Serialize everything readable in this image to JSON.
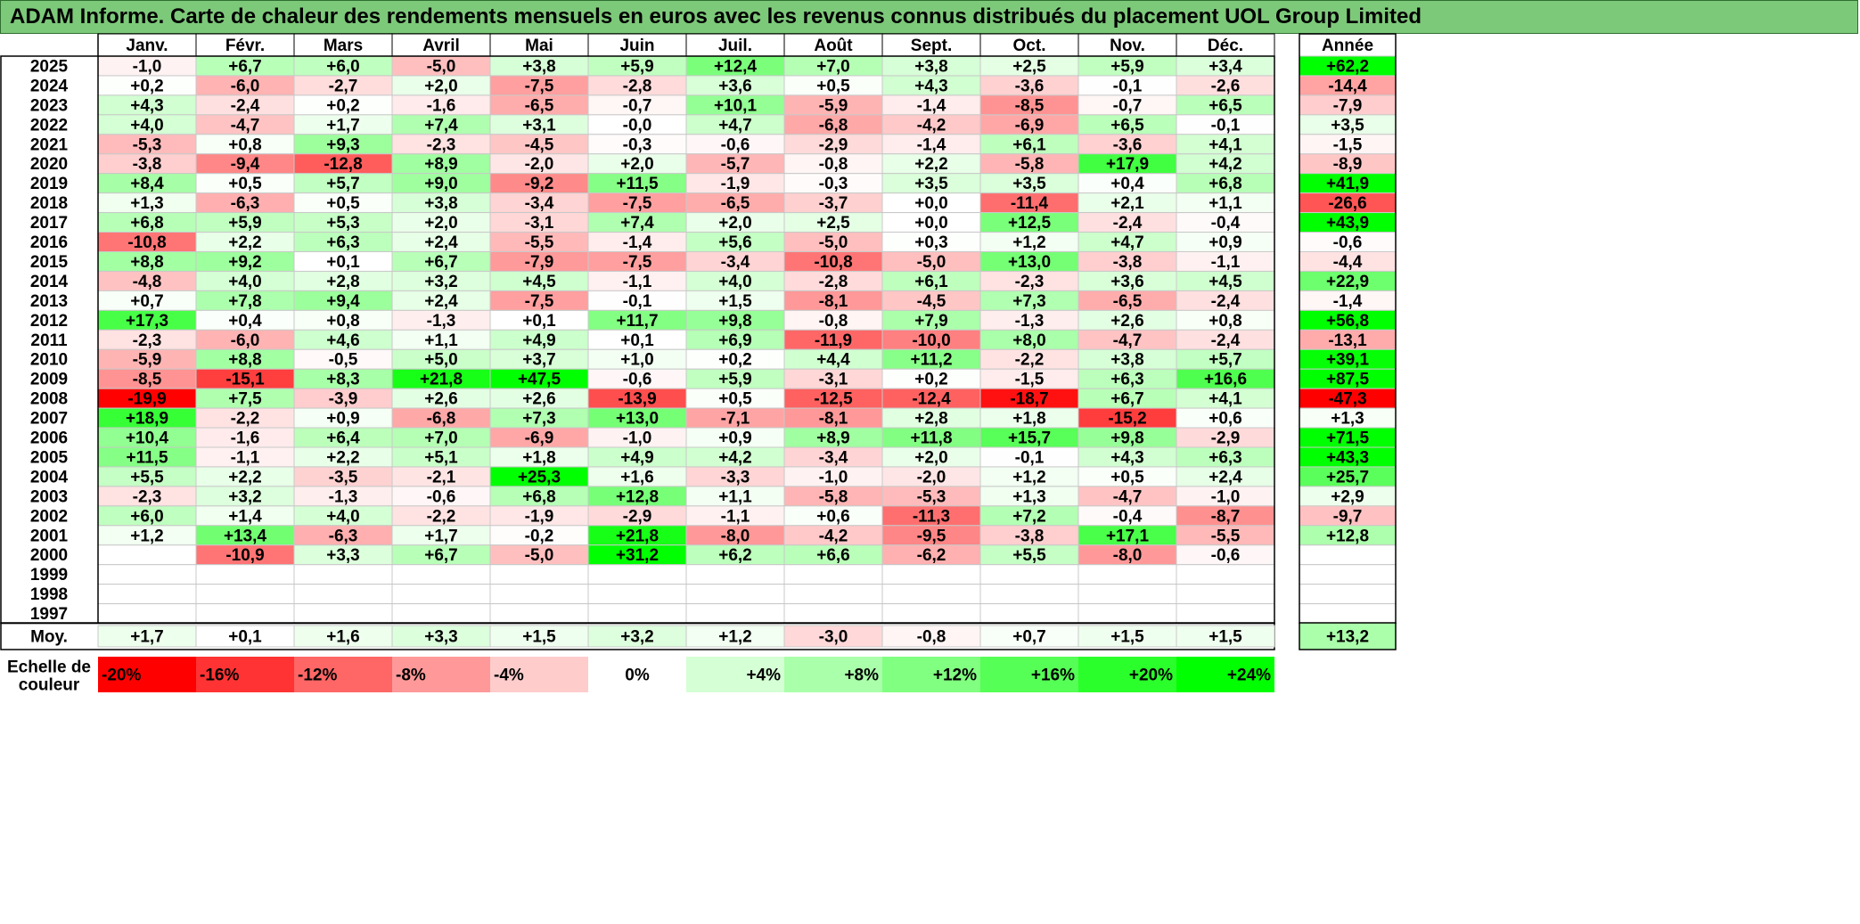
{
  "title": "ADAM Informe. Carte de chaleur des rendements mensuels en euros avec les revenus connus distribués du placement UOL Group Limited",
  "chart_data": {
    "type": "heatmap",
    "months": [
      "Janv.",
      "Févr.",
      "Mars",
      "Avril",
      "Mai",
      "Juin",
      "Juil.",
      "Août",
      "Sept.",
      "Oct.",
      "Nov.",
      "Déc."
    ],
    "year_header": "Année",
    "rows": [
      {
        "year": "2025",
        "values": [
          -1.0,
          6.7,
          6.0,
          -5.0,
          3.8,
          5.9,
          12.4,
          7.0,
          3.8,
          2.5,
          5.9,
          3.4
        ],
        "annual": 62.2
      },
      {
        "year": "2024",
        "values": [
          0.2,
          -6.0,
          -2.7,
          2.0,
          -7.5,
          -2.8,
          3.6,
          0.5,
          4.3,
          -3.6,
          -0.1,
          -2.6
        ],
        "annual": -14.4
      },
      {
        "year": "2023",
        "values": [
          4.3,
          -2.4,
          0.2,
          -1.6,
          -6.5,
          -0.7,
          10.1,
          -5.9,
          -1.4,
          -8.5,
          -0.7,
          6.5
        ],
        "annual": -7.9
      },
      {
        "year": "2022",
        "values": [
          4.0,
          -4.7,
          1.7,
          7.4,
          3.1,
          -0.0,
          4.7,
          -6.8,
          -4.2,
          -6.9,
          6.5,
          -0.1
        ],
        "annual": 3.5
      },
      {
        "year": "2021",
        "values": [
          -5.3,
          0.8,
          9.3,
          -2.3,
          -4.5,
          -0.3,
          -0.6,
          -2.9,
          -1.4,
          6.1,
          -3.6,
          4.1
        ],
        "annual": -1.5
      },
      {
        "year": "2020",
        "values": [
          -3.8,
          -9.4,
          -12.8,
          8.9,
          -2.0,
          2.0,
          -5.7,
          -0.8,
          2.2,
          -5.8,
          17.9,
          4.2
        ],
        "annual": -8.9
      },
      {
        "year": "2019",
        "values": [
          8.4,
          0.5,
          5.7,
          9.0,
          -9.2,
          11.5,
          -1.9,
          -0.3,
          3.5,
          3.5,
          0.4,
          6.8
        ],
        "annual": 41.9
      },
      {
        "year": "2018",
        "values": [
          1.3,
          -6.3,
          0.5,
          3.8,
          -3.4,
          -7.5,
          -6.5,
          -3.7,
          0.0,
          -11.4,
          2.1,
          1.1
        ],
        "annual": -26.6
      },
      {
        "year": "2017",
        "values": [
          6.8,
          5.9,
          5.3,
          2.0,
          -3.1,
          7.4,
          2.0,
          2.5,
          0.0,
          12.5,
          -2.4,
          -0.4
        ],
        "annual": 43.9
      },
      {
        "year": "2016",
        "values": [
          -10.8,
          2.2,
          6.3,
          2.4,
          -5.5,
          -1.4,
          5.6,
          -5.0,
          0.3,
          1.2,
          4.7,
          0.9
        ],
        "annual": -0.6
      },
      {
        "year": "2015",
        "values": [
          8.8,
          9.2,
          0.1,
          6.7,
          -7.9,
          -7.5,
          -3.4,
          -10.8,
          -5.0,
          13.0,
          -3.8,
          -1.1
        ],
        "annual": -4.4
      },
      {
        "year": "2014",
        "values": [
          -4.8,
          4.0,
          2.8,
          3.2,
          4.5,
          -1.1,
          4.0,
          -2.8,
          6.1,
          -2.3,
          3.6,
          4.5
        ],
        "annual": 22.9
      },
      {
        "year": "2013",
        "values": [
          0.7,
          7.8,
          9.4,
          2.4,
          -7.5,
          -0.1,
          1.5,
          -8.1,
          -4.5,
          7.3,
          -6.5,
          -2.4
        ],
        "annual": -1.4
      },
      {
        "year": "2012",
        "values": [
          17.3,
          0.4,
          0.8,
          -1.3,
          0.1,
          11.7,
          9.8,
          -0.8,
          7.9,
          -1.3,
          2.6,
          0.8
        ],
        "annual": 56.8
      },
      {
        "year": "2011",
        "values": [
          -2.3,
          -6.0,
          4.6,
          1.1,
          4.9,
          0.1,
          6.9,
          -11.9,
          -10.0,
          8.0,
          -4.7,
          -2.4
        ],
        "annual": -13.1
      },
      {
        "year": "2010",
        "values": [
          -5.9,
          8.8,
          -0.5,
          5.0,
          3.7,
          1.0,
          0.2,
          4.4,
          11.2,
          -2.2,
          3.8,
          5.7
        ],
        "annual": 39.1
      },
      {
        "year": "2009",
        "values": [
          -8.5,
          -15.1,
          8.3,
          21.8,
          47.5,
          -0.6,
          5.9,
          -3.1,
          0.2,
          -1.5,
          6.3,
          16.6
        ],
        "annual": 87.5
      },
      {
        "year": "2008",
        "values": [
          -19.9,
          7.5,
          -3.9,
          2.6,
          2.6,
          -13.9,
          0.5,
          -12.5,
          -12.4,
          -18.7,
          6.7,
          4.1
        ],
        "annual": -47.3
      },
      {
        "year": "2007",
        "values": [
          18.9,
          -2.2,
          0.9,
          -6.8,
          7.3,
          13.0,
          -7.1,
          -8.1,
          2.8,
          1.8,
          -15.2,
          0.6
        ],
        "annual": 1.3
      },
      {
        "year": "2006",
        "values": [
          10.4,
          -1.6,
          6.4,
          7.0,
          -6.9,
          -1.0,
          0.9,
          8.9,
          11.8,
          15.7,
          9.8,
          -2.9
        ],
        "annual": 71.5
      },
      {
        "year": "2005",
        "values": [
          11.5,
          -1.1,
          2.2,
          5.1,
          1.8,
          4.9,
          4.2,
          -3.4,
          2.0,
          -0.1,
          4.3,
          6.3
        ],
        "annual": 43.3
      },
      {
        "year": "2004",
        "values": [
          5.5,
          2.2,
          -3.5,
          -2.1,
          25.3,
          1.6,
          -3.3,
          -1.0,
          -2.0,
          1.2,
          0.5,
          2.4
        ],
        "annual": 25.7
      },
      {
        "year": "2003",
        "values": [
          -2.3,
          3.2,
          -1.3,
          -0.6,
          6.8,
          12.8,
          1.1,
          -5.8,
          -5.3,
          1.3,
          -4.7,
          -1.0
        ],
        "annual": 2.9
      },
      {
        "year": "2002",
        "values": [
          6.0,
          1.4,
          4.0,
          -2.2,
          -1.9,
          -2.9,
          -1.1,
          0.6,
          -11.3,
          7.2,
          -0.4,
          -8.7
        ],
        "annual": -9.7
      },
      {
        "year": "2001",
        "values": [
          1.2,
          13.4,
          -6.3,
          1.7,
          -0.2,
          21.8,
          -8.0,
          -4.2,
          -9.5,
          -3.8,
          17.1,
          -5.5
        ],
        "annual": 12.8
      },
      {
        "year": "2000",
        "values": [
          null,
          -10.9,
          3.3,
          6.7,
          -5.0,
          31.2,
          6.2,
          6.6,
          -6.2,
          5.5,
          -8.0,
          -0.6
        ],
        "annual": null
      },
      {
        "year": "1999",
        "values": [
          null,
          null,
          null,
          null,
          null,
          null,
          null,
          null,
          null,
          null,
          null,
          null
        ],
        "annual": null
      },
      {
        "year": "1998",
        "values": [
          null,
          null,
          null,
          null,
          null,
          null,
          null,
          null,
          null,
          null,
          null,
          null
        ],
        "annual": null
      },
      {
        "year": "1997",
        "values": [
          null,
          null,
          null,
          null,
          null,
          null,
          null,
          null,
          null,
          null,
          null,
          null
        ],
        "annual": null
      }
    ],
    "average": {
      "label": "Moy.",
      "values": [
        1.7,
        0.1,
        1.6,
        3.3,
        1.5,
        3.2,
        1.2,
        -3.0,
        -0.8,
        0.7,
        1.5,
        1.5
      ],
      "annual": 13.2
    },
    "color_scale": {
      "label_line1": "Echelle de",
      "label_line2": "couleur",
      "stops": [
        "-20%",
        "-16%",
        "-12%",
        "-8%",
        "-4%",
        "0%",
        "+4%",
        "+8%",
        "+12%",
        "+16%",
        "+20%",
        "+24%"
      ],
      "stop_values": [
        -20,
        -16,
        -12,
        -8,
        -4,
        0,
        4,
        8,
        12,
        16,
        20,
        24
      ]
    },
    "colors": {
      "negative": "#ff0000",
      "positive": "#00ff00",
      "neutral": "#ffffff"
    }
  }
}
